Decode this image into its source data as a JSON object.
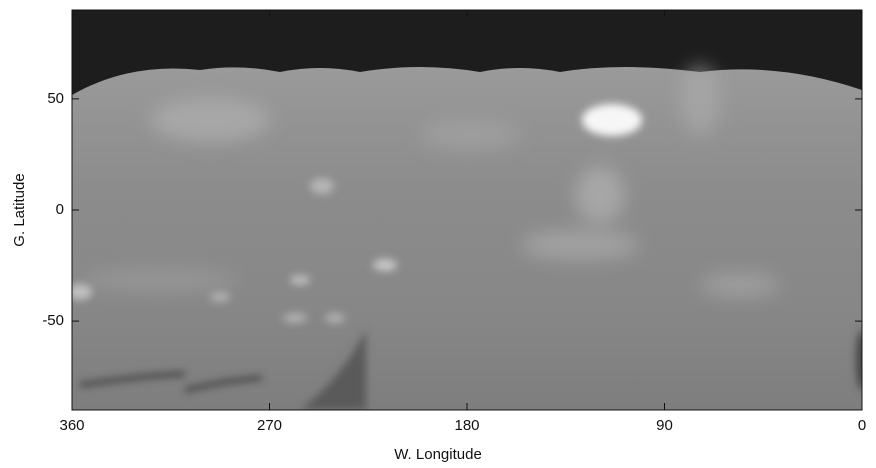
{
  "chart_data": {
    "type": "map",
    "xlabel": "W. Longitude",
    "ylabel": "G. Latitude",
    "xlim": [
      360,
      0
    ],
    "xticks": [
      360,
      270,
      180,
      90,
      0
    ],
    "ylim": [
      -90,
      90
    ],
    "yticks": [
      50,
      0,
      -50
    ]
  }
}
